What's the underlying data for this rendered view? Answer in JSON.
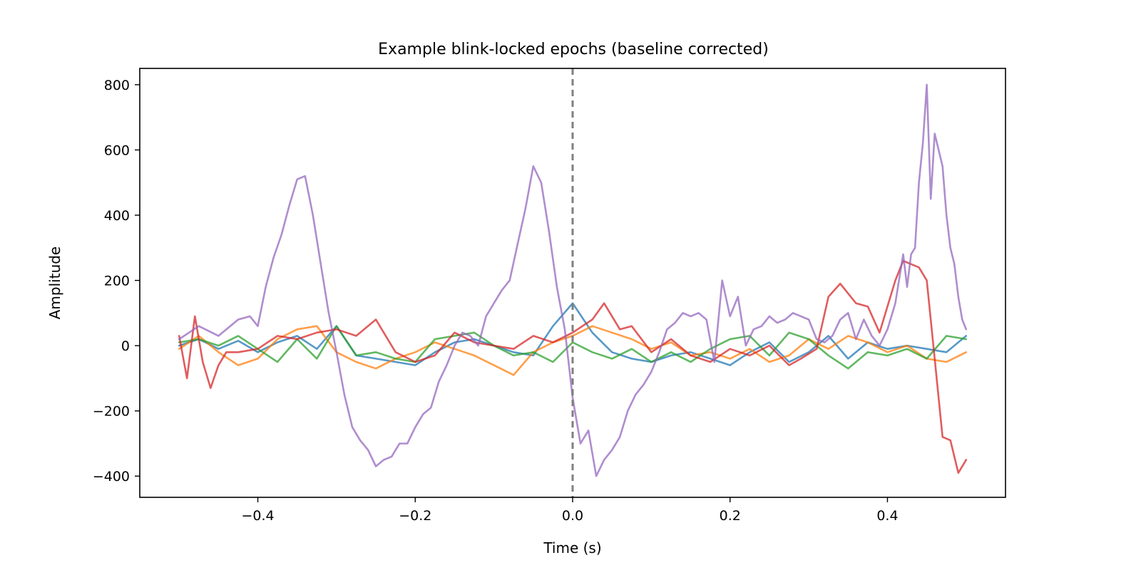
{
  "chart_data": {
    "type": "line",
    "title": "Example blink-locked epochs (baseline corrected)",
    "xlabel": "Time (s)",
    "ylabel": "Amplitude",
    "xlim": [
      -0.55,
      0.55
    ],
    "ylim": [
      -465,
      850
    ],
    "xticks": [
      -0.4,
      -0.2,
      0.0,
      0.2,
      0.4
    ],
    "xtick_labels": [
      "−0.4",
      "−0.2",
      "0.0",
      "0.2",
      "0.4"
    ],
    "yticks": [
      -400,
      -200,
      0,
      200,
      400,
      600,
      800
    ],
    "ytick_labels": [
      "−400",
      "−200",
      "0",
      "200",
      "400",
      "600",
      "800"
    ],
    "grid": false,
    "event_marker": {
      "x": 0.0,
      "style": "dashed",
      "color": "#7f7f7f"
    },
    "series": [
      {
        "color": "#1f77b4",
        "x": [
          -0.5,
          -0.475,
          -0.45,
          -0.425,
          -0.4,
          -0.375,
          -0.35,
          -0.325,
          -0.3,
          -0.275,
          -0.25,
          -0.225,
          -0.2,
          -0.175,
          -0.15,
          -0.125,
          -0.1,
          -0.075,
          -0.05,
          -0.025,
          0.0,
          0.025,
          0.05,
          0.075,
          0.1,
          0.125,
          0.15,
          0.175,
          0.2,
          0.225,
          0.25,
          0.275,
          0.3,
          0.325,
          0.35,
          0.375,
          0.4,
          0.425,
          0.45,
          0.475,
          0.5
        ],
        "y": [
          0,
          20,
          -10,
          15,
          -20,
          10,
          30,
          -10,
          60,
          -30,
          -40,
          -50,
          -60,
          -20,
          10,
          20,
          0,
          -20,
          -30,
          60,
          130,
          40,
          -20,
          -40,
          -50,
          -30,
          -20,
          -40,
          -60,
          -20,
          10,
          -50,
          -20,
          30,
          -40,
          10,
          -10,
          0,
          -10,
          -20,
          30
        ]
      },
      {
        "color": "#ff7f0e",
        "x": [
          -0.5,
          -0.475,
          -0.45,
          -0.425,
          -0.4,
          -0.375,
          -0.35,
          -0.325,
          -0.3,
          -0.275,
          -0.25,
          -0.225,
          -0.2,
          -0.175,
          -0.15,
          -0.125,
          -0.1,
          -0.075,
          -0.05,
          -0.025,
          0.0,
          0.025,
          0.05,
          0.075,
          0.1,
          0.125,
          0.15,
          0.175,
          0.2,
          0.225,
          0.25,
          0.275,
          0.3,
          0.325,
          0.35,
          0.375,
          0.4,
          0.425,
          0.45,
          0.475,
          0.5
        ],
        "y": [
          -10,
          30,
          -20,
          -60,
          -40,
          20,
          50,
          60,
          -20,
          -50,
          -70,
          -40,
          -20,
          10,
          -10,
          -30,
          -60,
          -90,
          -20,
          10,
          30,
          60,
          40,
          20,
          -10,
          10,
          -30,
          -20,
          -40,
          -10,
          -50,
          -30,
          20,
          -10,
          30,
          10,
          -20,
          0,
          -40,
          -50,
          -20
        ]
      },
      {
        "color": "#2ca02c",
        "x": [
          -0.5,
          -0.475,
          -0.45,
          -0.425,
          -0.4,
          -0.375,
          -0.35,
          -0.325,
          -0.3,
          -0.275,
          -0.25,
          -0.225,
          -0.2,
          -0.175,
          -0.15,
          -0.125,
          -0.1,
          -0.075,
          -0.05,
          -0.025,
          0.0,
          0.025,
          0.05,
          0.075,
          0.1,
          0.125,
          0.15,
          0.175,
          0.2,
          0.225,
          0.25,
          0.275,
          0.3,
          0.325,
          0.35,
          0.375,
          0.4,
          0.425,
          0.45,
          0.475,
          0.5
        ],
        "y": [
          10,
          20,
          0,
          30,
          -10,
          -50,
          20,
          -40,
          60,
          -30,
          -20,
          -40,
          -50,
          20,
          30,
          40,
          0,
          -30,
          -20,
          -50,
          10,
          -20,
          -40,
          -10,
          -50,
          -20,
          -50,
          -10,
          20,
          30,
          -30,
          40,
          20,
          -30,
          -70,
          -20,
          -30,
          -10,
          -40,
          30,
          20
        ]
      },
      {
        "color": "#d62728",
        "x": [
          -0.5,
          -0.49,
          -0.48,
          -0.47,
          -0.46,
          -0.45,
          -0.44,
          -0.425,
          -0.4,
          -0.375,
          -0.35,
          -0.325,
          -0.3,
          -0.275,
          -0.25,
          -0.225,
          -0.2,
          -0.175,
          -0.15,
          -0.125,
          -0.1,
          -0.075,
          -0.05,
          -0.025,
          0.0,
          0.025,
          0.04,
          0.06,
          0.075,
          0.1,
          0.125,
          0.15,
          0.175,
          0.2,
          0.225,
          0.25,
          0.275,
          0.29,
          0.31,
          0.325,
          0.34,
          0.36,
          0.375,
          0.39,
          0.41,
          0.42,
          0.43,
          0.44,
          0.45,
          0.46,
          0.47,
          0.48,
          0.49,
          0.5
        ],
        "y": [
          30,
          -100,
          90,
          -50,
          -130,
          -60,
          -20,
          -20,
          -10,
          30,
          20,
          40,
          50,
          30,
          80,
          -20,
          -50,
          -30,
          40,
          10,
          0,
          -10,
          30,
          10,
          40,
          80,
          130,
          50,
          60,
          -20,
          20,
          -30,
          -50,
          -10,
          -30,
          0,
          -60,
          -40,
          -10,
          150,
          190,
          130,
          120,
          40,
          200,
          260,
          250,
          240,
          200,
          -40,
          -280,
          -290,
          -390,
          -350
        ]
      },
      {
        "color": "#9467bd",
        "x": [
          -0.5,
          -0.475,
          -0.45,
          -0.425,
          -0.41,
          -0.4,
          -0.39,
          -0.38,
          -0.37,
          -0.36,
          -0.35,
          -0.34,
          -0.33,
          -0.32,
          -0.31,
          -0.3,
          -0.29,
          -0.28,
          -0.27,
          -0.26,
          -0.25,
          -0.24,
          -0.23,
          -0.22,
          -0.21,
          -0.2,
          -0.19,
          -0.18,
          -0.17,
          -0.16,
          -0.15,
          -0.14,
          -0.13,
          -0.12,
          -0.11,
          -0.1,
          -0.09,
          -0.08,
          -0.07,
          -0.06,
          -0.05,
          -0.04,
          -0.03,
          -0.02,
          -0.01,
          0.0,
          0.01,
          0.02,
          0.03,
          0.04,
          0.05,
          0.06,
          0.07,
          0.08,
          0.09,
          0.1,
          0.11,
          0.12,
          0.13,
          0.14,
          0.15,
          0.16,
          0.17,
          0.18,
          0.19,
          0.2,
          0.21,
          0.22,
          0.23,
          0.24,
          0.25,
          0.26,
          0.27,
          0.28,
          0.29,
          0.3,
          0.31,
          0.32,
          0.33,
          0.34,
          0.35,
          0.36,
          0.37,
          0.38,
          0.39,
          0.4,
          0.41,
          0.42,
          0.425,
          0.43,
          0.435,
          0.44,
          0.445,
          0.45,
          0.455,
          0.46,
          0.465,
          0.47,
          0.475,
          0.48,
          0.485,
          0.49,
          0.495,
          0.5
        ],
        "y": [
          20,
          60,
          30,
          80,
          90,
          60,
          180,
          270,
          340,
          430,
          510,
          520,
          400,
          250,
          100,
          -20,
          -150,
          -250,
          -290,
          -320,
          -370,
          -350,
          -340,
          -300,
          -300,
          -250,
          -210,
          -190,
          -110,
          -60,
          0,
          40,
          30,
          0,
          90,
          130,
          170,
          200,
          310,
          420,
          550,
          500,
          350,
          180,
          50,
          -160,
          -300,
          -260,
          -400,
          -350,
          -320,
          -280,
          -200,
          -150,
          -120,
          -80,
          -20,
          50,
          70,
          100,
          90,
          100,
          80,
          -50,
          200,
          90,
          150,
          0,
          50,
          60,
          90,
          70,
          80,
          100,
          90,
          80,
          20,
          10,
          30,
          80,
          100,
          20,
          80,
          30,
          0,
          50,
          130,
          280,
          180,
          280,
          300,
          500,
          620,
          800,
          450,
          650,
          600,
          550,
          400,
          300,
          250,
          150,
          80,
          50
        ]
      }
    ]
  }
}
